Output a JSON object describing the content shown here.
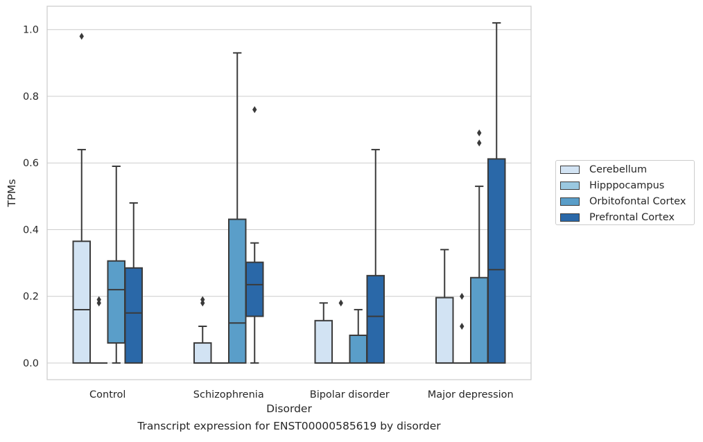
{
  "chart_data": {
    "type": "box",
    "xlabel": "Disorder",
    "ylabel": "TPMs",
    "caption": "Transcript expression for ENST00000585619 by disorder",
    "ylim": [
      -0.05,
      1.07
    ],
    "yticks": [
      "0.0",
      "0.2",
      "0.4",
      "0.6",
      "0.8",
      "1.0"
    ],
    "grid": "horizontal",
    "legend_position": "right",
    "categories": [
      "Control",
      "Schizophrenia",
      "Bipolar disorder",
      "Major depression"
    ],
    "series": [
      {
        "name": "Cerebellum",
        "color": "#d2e3f3",
        "boxes": [
          {
            "whislo": 0.0,
            "q1": 0.0,
            "med": 0.16,
            "q3": 0.365,
            "whishi": 0.64,
            "fliers": [
              0.98
            ]
          },
          {
            "whislo": 0.0,
            "q1": 0.0,
            "med": 0.0,
            "q3": 0.06,
            "whishi": 0.11,
            "fliers": [
              0.18,
              0.19
            ]
          },
          {
            "whislo": 0.0,
            "q1": 0.0,
            "med": 0.0,
            "q3": 0.127,
            "whishi": 0.18,
            "fliers": []
          },
          {
            "whislo": 0.0,
            "q1": 0.0,
            "med": 0.0,
            "q3": 0.196,
            "whishi": 0.34,
            "fliers": []
          }
        ]
      },
      {
        "name": "Hipppocampus",
        "color": "#9ac8e0",
        "boxes": [
          {
            "whislo": 0.0,
            "q1": 0.0,
            "med": 0.0,
            "q3": 0.0,
            "whishi": 0.0,
            "fliers": [
              0.18,
              0.19
            ]
          },
          {
            "whislo": 0.0,
            "q1": 0.0,
            "med": 0.0,
            "q3": 0.0,
            "whishi": 0.0,
            "fliers": []
          },
          {
            "whislo": 0.0,
            "q1": 0.0,
            "med": 0.0,
            "q3": 0.0,
            "whishi": 0.0,
            "fliers": [
              0.18
            ]
          },
          {
            "whislo": 0.0,
            "q1": 0.0,
            "med": 0.0,
            "q3": 0.0,
            "whishi": 0.0,
            "fliers": [
              0.11,
              0.2
            ]
          }
        ]
      },
      {
        "name": "Orbitofontal Cortex",
        "color": "#5a9ec9",
        "boxes": [
          {
            "whislo": 0.0,
            "q1": 0.06,
            "med": 0.22,
            "q3": 0.306,
            "whishi": 0.59,
            "fliers": []
          },
          {
            "whislo": 0.0,
            "q1": 0.0,
            "med": 0.12,
            "q3": 0.431,
            "whishi": 0.93,
            "fliers": []
          },
          {
            "whislo": 0.0,
            "q1": 0.0,
            "med": 0.0,
            "q3": 0.083,
            "whishi": 0.16,
            "fliers": []
          },
          {
            "whislo": 0.0,
            "q1": 0.0,
            "med": 0.0,
            "q3": 0.256,
            "whishi": 0.53,
            "fliers": [
              0.66,
              0.69
            ]
          }
        ]
      },
      {
        "name": "Prefrontal Cortex",
        "color": "#2a68a8",
        "boxes": [
          {
            "whislo": 0.0,
            "q1": 0.0,
            "med": 0.15,
            "q3": 0.285,
            "whishi": 0.48,
            "fliers": []
          },
          {
            "whislo": 0.0,
            "q1": 0.14,
            "med": 0.235,
            "q3": 0.302,
            "whishi": 0.36,
            "fliers": [
              0.76
            ]
          },
          {
            "whislo": 0.0,
            "q1": 0.0,
            "med": 0.14,
            "q3": 0.262,
            "whishi": 0.64,
            "fliers": []
          },
          {
            "whislo": 0.0,
            "q1": 0.0,
            "med": 0.28,
            "q3": 0.612,
            "whishi": 1.02,
            "fliers": []
          }
        ]
      }
    ]
  }
}
